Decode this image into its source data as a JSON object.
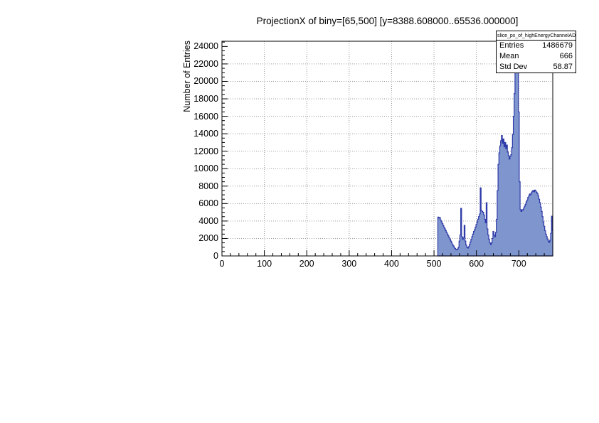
{
  "title": "ProjectionX of biny=[65,500] [y=8388.608000..65536.000000]",
  "y_axis": {
    "label": "Number of Entries",
    "tick_values": [
      0,
      2000,
      4000,
      6000,
      8000,
      10000,
      12000,
      14000,
      16000,
      18000,
      20000,
      22000,
      24000
    ]
  },
  "x_axis": {
    "tick_values": [
      0,
      100,
      200,
      300,
      400,
      500,
      600,
      700
    ]
  },
  "stats_box": {
    "title": "slice_px_of_highEnergyChannelADC",
    "rows": [
      {
        "label": "Entries",
        "value": "1486679"
      },
      {
        "label": "Mean",
        "value": "666"
      },
      {
        "label": "Std Dev",
        "value": "58.87"
      }
    ]
  },
  "colors": {
    "fill": "#7e95ce",
    "line": "#2f3ba8",
    "grid": "#9a9a9a",
    "frame": "#000000"
  },
  "chart_data": {
    "type": "bar",
    "title": "ProjectionX of biny=[65,500] [y=8388.608000..65536.000000]",
    "xlabel": "",
    "ylabel": "Number of Entries",
    "xlim": [
      0,
      780
    ],
    "ylim": [
      0,
      24600
    ],
    "grid": true,
    "x_major_step": 100,
    "x_minor_step": 20,
    "y_major_step": 2000,
    "y_minor_step": 500,
    "bin_start": 509,
    "bin_width": 2,
    "values": [
      4450,
      4350,
      4400,
      4100,
      3900,
      3700,
      3500,
      3300,
      3100,
      2900,
      2700,
      2500,
      2300,
      2100,
      1900,
      1700,
      1500,
      1300,
      1150,
      1000,
      850,
      750,
      700,
      800,
      1000,
      1700,
      2400,
      5450,
      2200,
      1900,
      2100,
      3500,
      1700,
      1250,
      1000,
      900,
      1050,
      1300,
      1600,
      1900,
      2200,
      2500,
      2800,
      3000,
      3300,
      3600,
      3900,
      4200,
      4500,
      4800,
      7800,
      5200,
      5100,
      5000,
      4700,
      4200,
      3800,
      6100,
      3100,
      2400,
      1900,
      1500,
      1300,
      1500,
      2000,
      2800,
      2400,
      2200,
      2700,
      4200,
      7500,
      10500,
      11800,
      12600,
      13200,
      13800,
      12900,
      13400,
      12500,
      13000,
      12300,
      12700,
      11900,
      11500,
      11100,
      11400,
      11600,
      12400,
      13900,
      16000,
      18600,
      21200,
      23200,
      23300,
      21800,
      16500,
      8500,
      5300,
      5100,
      5300,
      5250,
      5500,
      5700,
      5900,
      6200,
      6400,
      6700,
      6900,
      7100,
      7000,
      7250,
      7400,
      7500,
      7350,
      7550,
      7450,
      7300,
      7150,
      6900,
      6500,
      6100,
      5600,
      5100,
      4500,
      3900,
      3400,
      2900,
      2500,
      2200,
      1900,
      1700,
      1550,
      1800,
      2600,
      4550,
      2900
    ]
  }
}
